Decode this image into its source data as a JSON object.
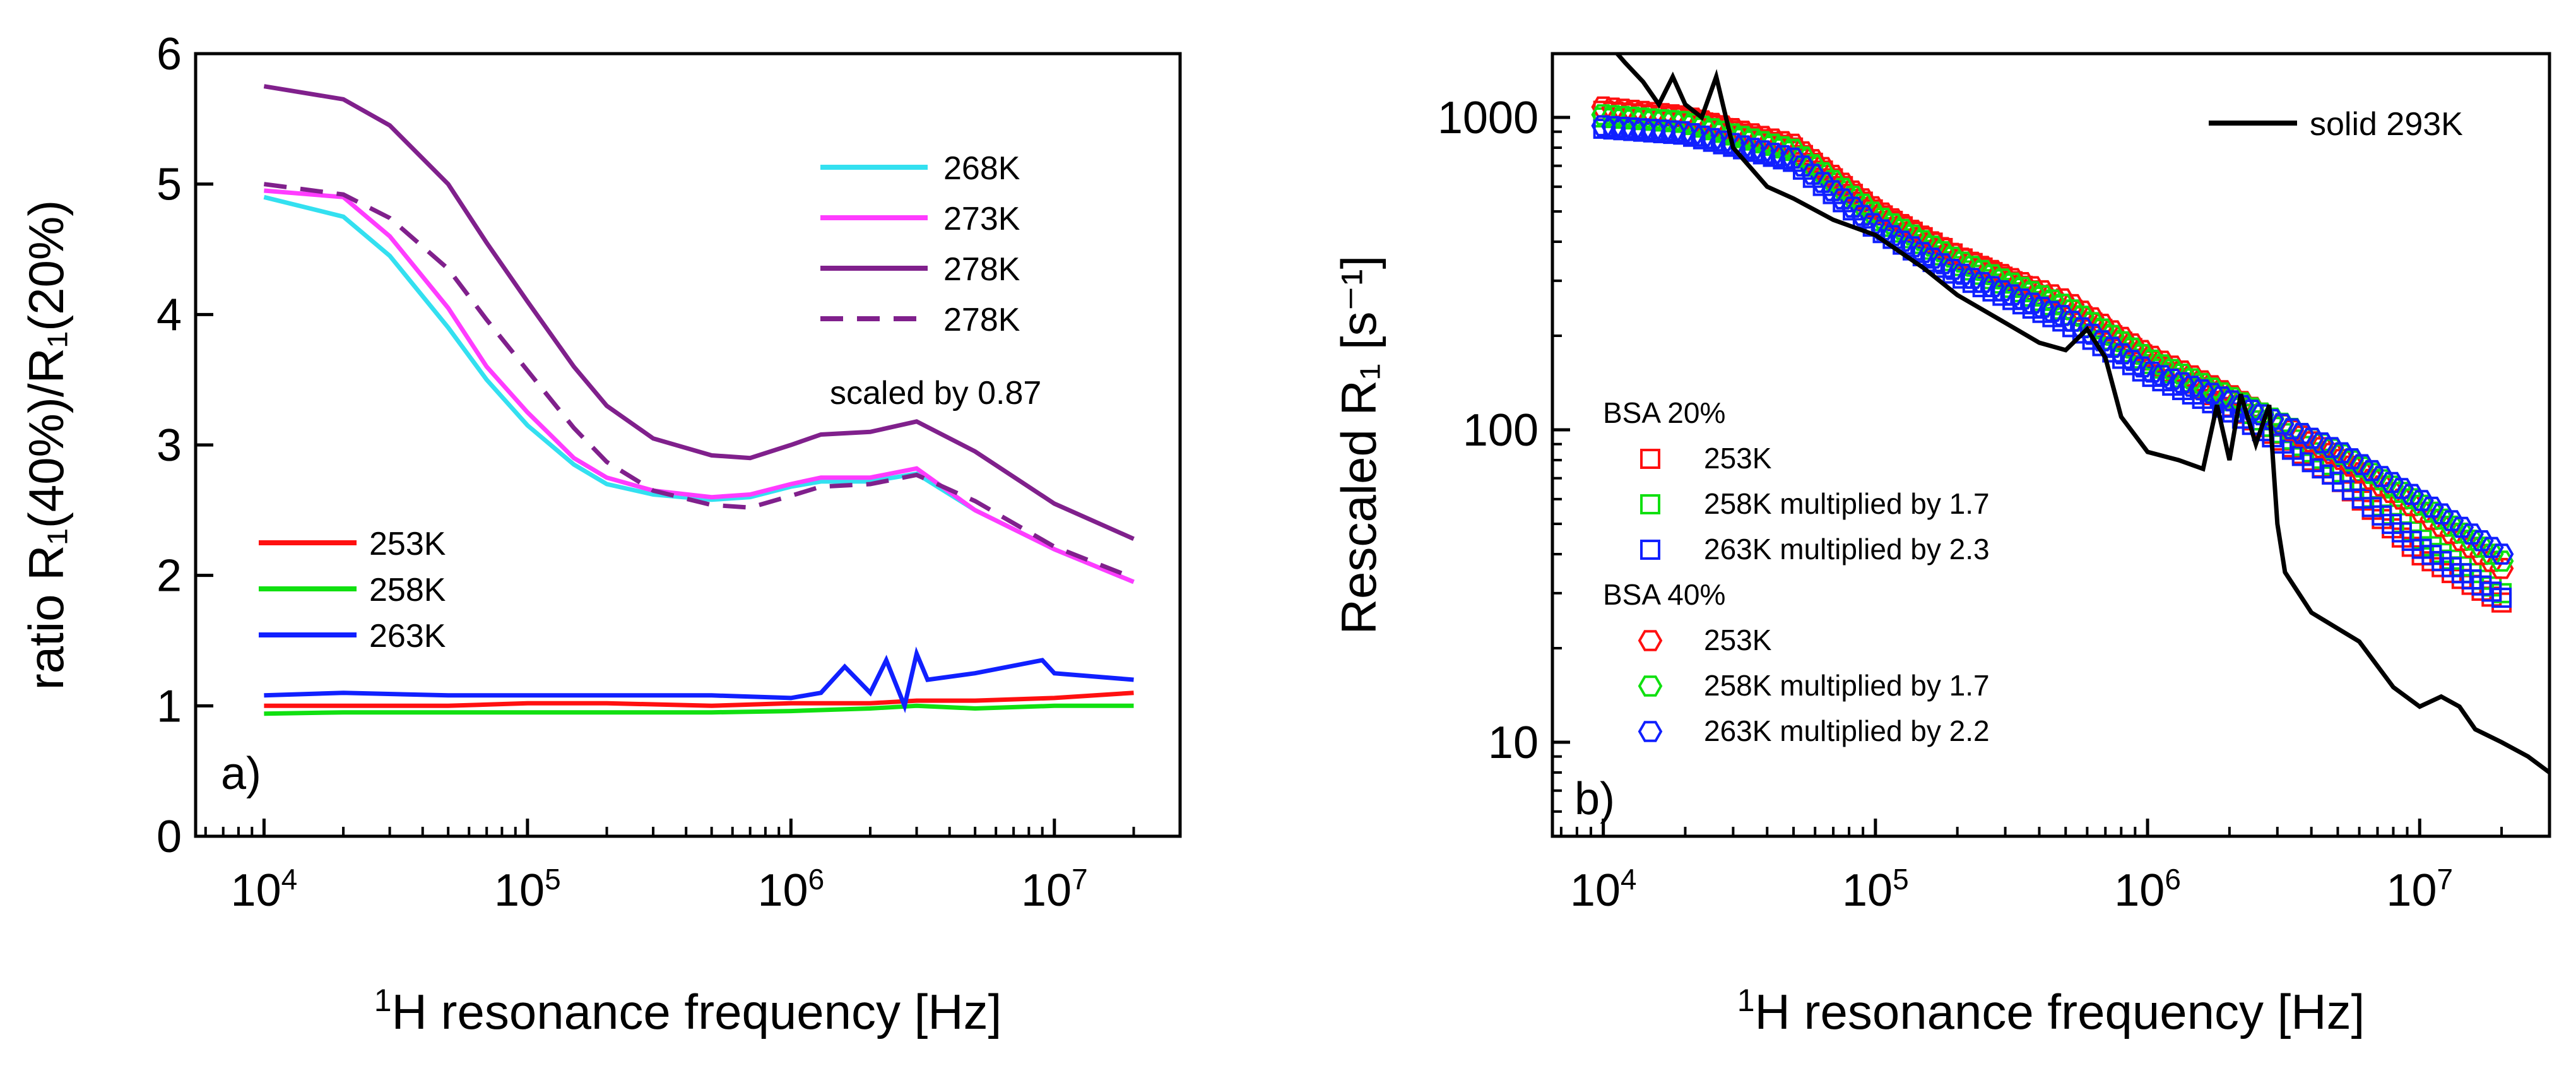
{
  "chart_data": [
    {
      "type": "line",
      "panel_label": "a)",
      "xlabel": "¹H resonance frequency [Hz]",
      "ylabel": "ratio R₁(40%)/R₁(20%)",
      "xscale": "log",
      "xlim": [
        5500,
        30000000
      ],
      "ylim": [
        0,
        6
      ],
      "x_ticks": [
        10000,
        100000,
        1000000,
        10000000
      ],
      "x_tick_labels": [
        {
          "base": "10",
          "exp": "4"
        },
        {
          "base": "10",
          "exp": "5"
        },
        {
          "base": "10",
          "exp": "6"
        },
        {
          "base": "10",
          "exp": "7"
        }
      ],
      "y_ticks": [
        0,
        1,
        2,
        3,
        4,
        5,
        6
      ],
      "y_tick_labels": [
        "0",
        "1",
        "2",
        "3",
        "4",
        "5",
        "6"
      ],
      "legend_note": "scaled by 0.87",
      "series": [
        {
          "name": "268K",
          "color": "#33e0f0",
          "dash": "solid",
          "x": [
            10000,
            20000,
            30000,
            50000,
            70000,
            100000,
            150000,
            200000,
            300000,
            500000,
            700000,
            1000000,
            1300000,
            2000000,
            3000000,
            5000000,
            10000000,
            20000000
          ],
          "y": [
            4.9,
            4.75,
            4.45,
            3.9,
            3.5,
            3.15,
            2.85,
            2.7,
            2.62,
            2.58,
            2.6,
            2.68,
            2.72,
            2.72,
            2.78,
            2.5,
            2.2,
            1.95
          ]
        },
        {
          "name": "273K",
          "color": "#ff3cff",
          "dash": "solid",
          "x": [
            10000,
            20000,
            30000,
            50000,
            70000,
            100000,
            150000,
            200000,
            300000,
            500000,
            700000,
            1000000,
            1300000,
            2000000,
            3000000,
            5000000,
            10000000,
            20000000
          ],
          "y": [
            4.95,
            4.9,
            4.6,
            4.05,
            3.6,
            3.25,
            2.9,
            2.75,
            2.65,
            2.6,
            2.62,
            2.7,
            2.75,
            2.75,
            2.82,
            2.5,
            2.2,
            1.95
          ]
        },
        {
          "name": "278K",
          "color": "#80208c",
          "dash": "solid",
          "x": [
            10000,
            20000,
            30000,
            50000,
            70000,
            100000,
            150000,
            200000,
            300000,
            500000,
            700000,
            1000000,
            1300000,
            2000000,
            3000000,
            5000000,
            10000000,
            20000000
          ],
          "y": [
            5.75,
            5.65,
            5.45,
            5.0,
            4.55,
            4.1,
            3.6,
            3.3,
            3.05,
            2.92,
            2.9,
            3.0,
            3.08,
            3.1,
            3.18,
            2.95,
            2.55,
            2.28
          ]
        },
        {
          "name": "278K",
          "color": "#80208c",
          "dash": "dashed",
          "x": [
            10000,
            20000,
            30000,
            50000,
            70000,
            100000,
            150000,
            200000,
            300000,
            500000,
            700000,
            1000000,
            1300000,
            2000000,
            3000000,
            5000000,
            10000000,
            20000000
          ],
          "y": [
            5.0,
            4.92,
            4.74,
            4.35,
            3.96,
            3.57,
            3.13,
            2.87,
            2.65,
            2.54,
            2.52,
            2.61,
            2.68,
            2.7,
            2.77,
            2.57,
            2.22,
            1.98
          ]
        },
        {
          "name": "253K",
          "color": "#ff1010",
          "dash": "solid",
          "x": [
            10000,
            20000,
            50000,
            100000,
            200000,
            500000,
            1000000,
            2000000,
            3000000,
            5000000,
            10000000,
            20000000
          ],
          "y": [
            1.0,
            1.0,
            1.0,
            1.02,
            1.02,
            1.0,
            1.02,
            1.02,
            1.04,
            1.04,
            1.06,
            1.1
          ]
        },
        {
          "name": "258K",
          "color": "#10e010",
          "dash": "solid",
          "x": [
            10000,
            20000,
            50000,
            100000,
            200000,
            500000,
            1000000,
            2000000,
            3000000,
            5000000,
            10000000,
            20000000
          ],
          "y": [
            0.94,
            0.95,
            0.95,
            0.95,
            0.95,
            0.95,
            0.96,
            0.98,
            1.0,
            0.98,
            1.0,
            1.0
          ]
        },
        {
          "name": "263K",
          "color": "#1020ff",
          "dash": "solid",
          "x": [
            10000,
            20000,
            50000,
            100000,
            200000,
            500000,
            1000000,
            1300000,
            1600000,
            2000000,
            2300000,
            2700000,
            3000000,
            3300000,
            5000000,
            9000000,
            10000000,
            20000000
          ],
          "y": [
            1.08,
            1.1,
            1.08,
            1.08,
            1.08,
            1.08,
            1.06,
            1.1,
            1.3,
            1.1,
            1.35,
            1.0,
            1.4,
            1.2,
            1.25,
            1.35,
            1.25,
            1.2
          ]
        }
      ]
    },
    {
      "type": "scatter",
      "panel_label": "b)",
      "xlabel": "¹H resonance frequency [Hz]",
      "ylabel": "Rescaled R₁ [s⁻¹]",
      "xscale": "log",
      "yscale": "log",
      "xlim": [
        6500,
        30000000
      ],
      "ylim": [
        5,
        1600
      ],
      "x_ticks": [
        10000,
        100000,
        1000000,
        10000000
      ],
      "x_tick_labels": [
        {
          "base": "10",
          "exp": "4"
        },
        {
          "base": "10",
          "exp": "5"
        },
        {
          "base": "10",
          "exp": "6"
        },
        {
          "base": "10",
          "exp": "7"
        }
      ],
      "y_ticks": [
        10,
        100,
        1000
      ],
      "y_tick_labels": [
        "10",
        "100",
        "1000"
      ],
      "legend_line": {
        "name": "solid 293K",
        "color": "#000000"
      },
      "legend_groups": [
        {
          "title": "BSA 20%",
          "marker": "square",
          "entries": [
            {
              "name": "253K",
              "color": "#ff1010"
            },
            {
              "name": "258K multiplied by 1.7",
              "color": "#10e010"
            },
            {
              "name": "263K multiplied by 2.3",
              "color": "#1020ff"
            }
          ]
        },
        {
          "title": "BSA 40%",
          "marker": "hexagon",
          "entries": [
            {
              "name": "253K",
              "color": "#ff1010"
            },
            {
              "name": "258K multiplied by 1.7",
              "color": "#10e010"
            },
            {
              "name": "263K multiplied by 2.2",
              "color": "#1020ff"
            }
          ]
        }
      ],
      "solid_line": {
        "x": [
          10000,
          12000,
          14000,
          16000,
          18000,
          20000,
          23000,
          26000,
          30000,
          40000,
          50000,
          70000,
          100000,
          150000,
          200000,
          300000,
          400000,
          500000,
          600000,
          700000,
          800000,
          1000000,
          1300000,
          1600000,
          1800000,
          2000000,
          2200000,
          2500000,
          2800000,
          3000000,
          3200000,
          4000000,
          6000000,
          8000000,
          10000000,
          12000000,
          14000000,
          16000000,
          20000000,
          25000000,
          30000000
        ],
        "y": [
          1800,
          1500,
          1300,
          1100,
          1350,
          1100,
          1000,
          1350,
          800,
          600,
          550,
          470,
          420,
          330,
          270,
          220,
          190,
          180,
          210,
          170,
          110,
          85,
          80,
          75,
          120,
          80,
          130,
          90,
          120,
          50,
          35,
          26,
          21,
          15,
          13,
          14,
          13,
          11,
          10,
          9,
          8
        ]
      },
      "series": [
        {
          "name": "BSA 20% 253K",
          "marker": "square",
          "color": "#ff1010",
          "x": [
            10000,
            20000,
            50000,
            100000,
            200000,
            500000,
            1000000,
            2000000,
            5000000,
            10000000,
            20000000
          ],
          "y": [
            1050,
            1000,
            800,
            500,
            360,
            250,
            170,
            120,
            70,
            40,
            28
          ]
        },
        {
          "name": "BSA 20% 258K multiplied by 1.7",
          "marker": "square",
          "color": "#10e010",
          "x": [
            10000,
            20000,
            50000,
            100000,
            200000,
            500000,
            1000000,
            2000000,
            5000000,
            10000000,
            20000000
          ],
          "y": [
            1000,
            960,
            780,
            480,
            340,
            240,
            165,
            125,
            75,
            45,
            30
          ]
        },
        {
          "name": "BSA 20% 263K multiplied by 2.3",
          "marker": "square",
          "color": "#1020ff",
          "x": [
            10000,
            20000,
            50000,
            100000,
            200000,
            500000,
            1000000,
            2000000,
            5000000,
            10000000,
            20000000
          ],
          "y": [
            920,
            880,
            720,
            440,
            310,
            220,
            150,
            115,
            70,
            42,
            29
          ]
        },
        {
          "name": "BSA 40% 253K",
          "marker": "hexagon",
          "color": "#ff1010",
          "x": [
            10000,
            20000,
            50000,
            100000,
            200000,
            500000,
            1000000,
            2000000,
            5000000,
            10000000,
            20000000
          ],
          "y": [
            1080,
            1010,
            820,
            510,
            360,
            260,
            175,
            130,
            82,
            55,
            36
          ]
        },
        {
          "name": "BSA 40% 258K multiplied by 1.7",
          "marker": "hexagon",
          "color": "#10e010",
          "x": [
            10000,
            20000,
            50000,
            100000,
            200000,
            500000,
            1000000,
            2000000,
            5000000,
            10000000,
            20000000
          ],
          "y": [
            1020,
            970,
            790,
            490,
            350,
            250,
            170,
            128,
            85,
            58,
            38
          ]
        },
        {
          "name": "BSA 40% 263K multiplied by 2.2",
          "marker": "hexagon",
          "color": "#1020ff",
          "x": [
            10000,
            20000,
            50000,
            100000,
            200000,
            500000,
            1000000,
            2000000,
            5000000,
            10000000,
            20000000
          ],
          "y": [
            940,
            900,
            740,
            450,
            320,
            230,
            155,
            125,
            86,
            60,
            40
          ]
        }
      ]
    }
  ]
}
